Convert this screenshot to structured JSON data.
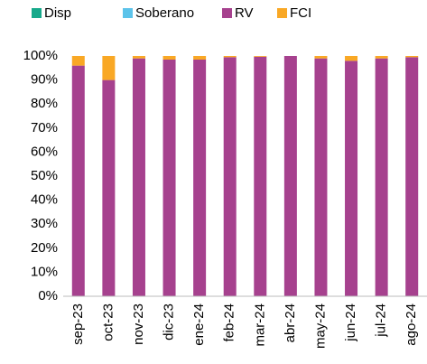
{
  "chart_data": {
    "type": "stacked_bar",
    "categories": [
      "sep-23",
      "oct-23",
      "nov-23",
      "dic-23",
      "ene-24",
      "feb-24",
      "mar-24",
      "abr-24",
      "may-24",
      "jun-24",
      "jul-24",
      "ago-24"
    ],
    "series": [
      {
        "name": "Disp",
        "color": "#17a98b",
        "values": [
          0,
          0,
          0,
          0,
          0,
          0,
          0,
          0,
          0,
          0,
          0,
          0
        ]
      },
      {
        "name": "Soberano",
        "color": "#5cc3ea",
        "values": [
          0,
          0,
          0,
          0,
          0,
          0,
          0,
          0,
          0,
          0,
          0,
          0
        ]
      },
      {
        "name": "RV",
        "color": "#a6418e",
        "values": [
          96,
          90,
          99,
          98.5,
          98.5,
          99.5,
          99.7,
          100,
          99,
          98,
          99,
          99.5
        ]
      },
      {
        "name": "FCI",
        "color": "#f9a825",
        "values": [
          4,
          10,
          1,
          1.5,
          1.5,
          0.5,
          0.3,
          0,
          1,
          2,
          1,
          0.5
        ]
      }
    ],
    "ylim": [
      0,
      100
    ],
    "yticks": [
      {
        "value": 0,
        "label": "0%"
      },
      {
        "value": 10,
        "label": "10%"
      },
      {
        "value": 20,
        "label": "20%"
      },
      {
        "value": 30,
        "label": "30%"
      },
      {
        "value": 40,
        "label": "40%"
      },
      {
        "value": 50,
        "label": "50%"
      },
      {
        "value": 60,
        "label": "60%"
      },
      {
        "value": 70,
        "label": "70%"
      },
      {
        "value": 80,
        "label": "80%"
      },
      {
        "value": 90,
        "label": "90%"
      },
      {
        "value": 100,
        "label": "100%"
      }
    ],
    "legend": "top"
  }
}
